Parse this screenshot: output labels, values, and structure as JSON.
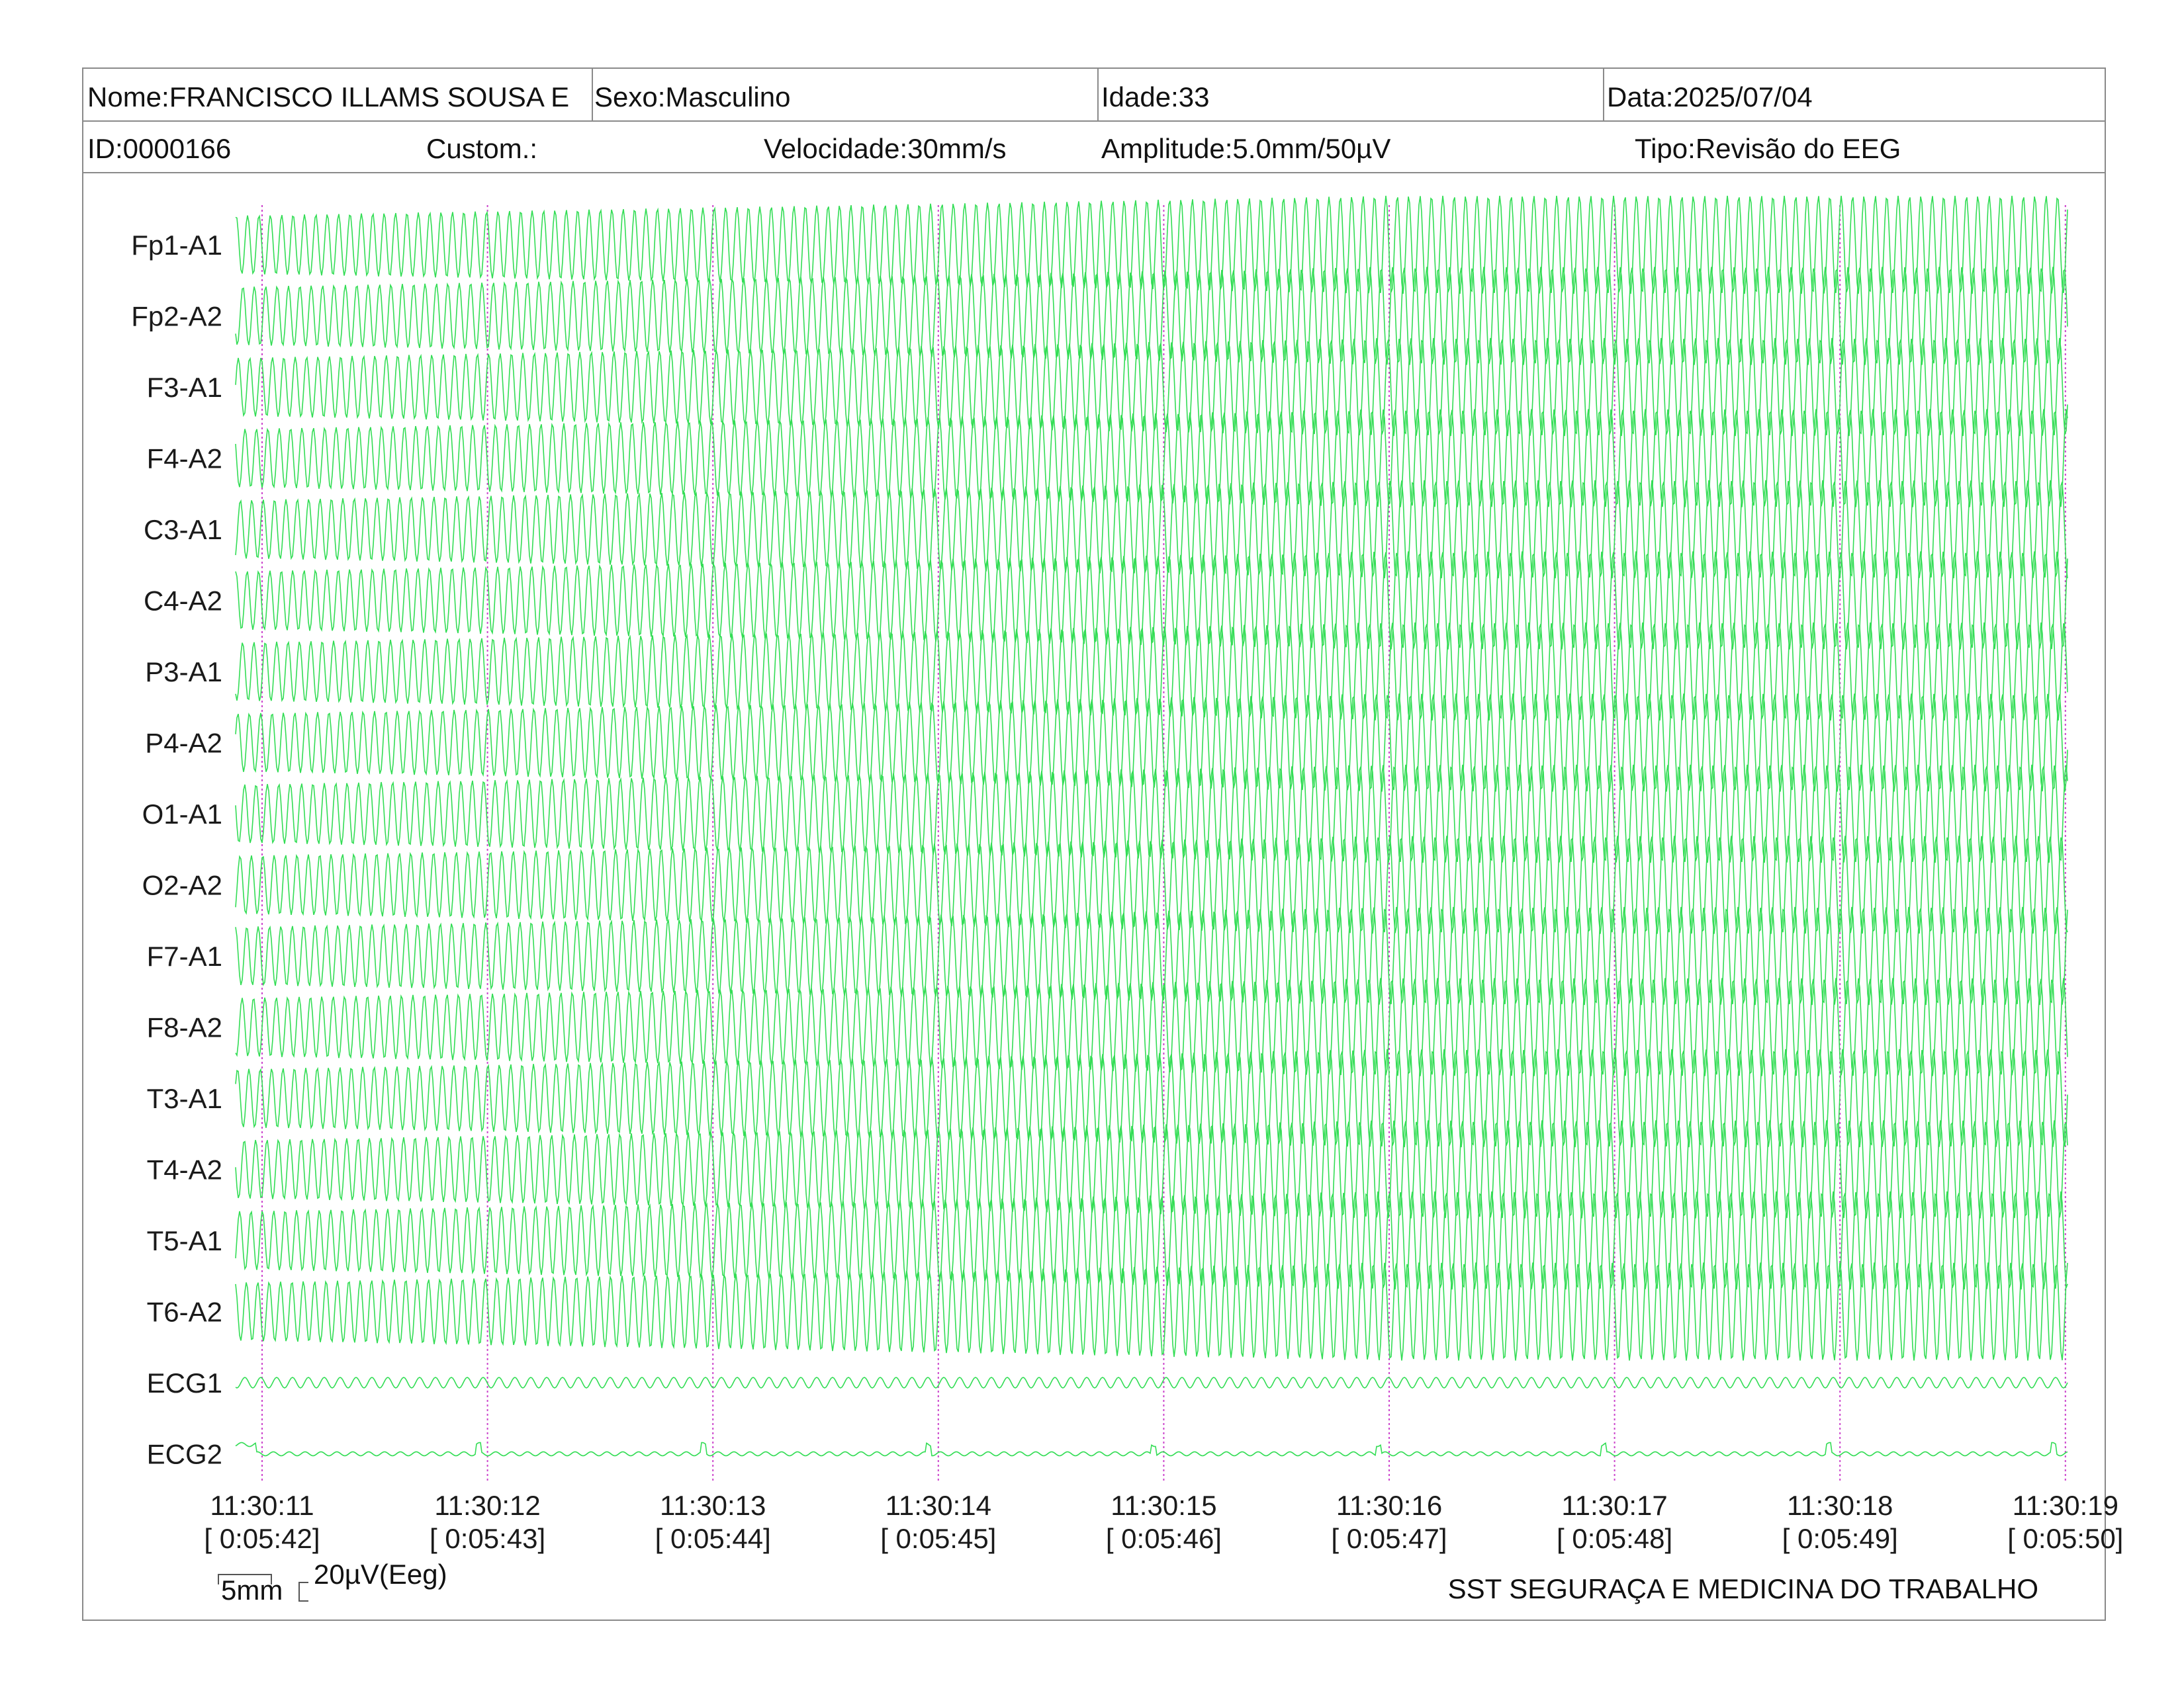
{
  "header": {
    "nome": "Nome:FRANCISCO ILLAMS SOUSA E",
    "sexo": "Sexo:Masculino",
    "idade": "Idade:33",
    "data": "Data:2025/07/04",
    "id": "ID:0000166",
    "custom": "Custom.:",
    "velocidade": "Velocidade:30mm/s",
    "amplitude": "Amplitude:5.0mm/50µV",
    "tipo": "Tipo:Revisão do EEG"
  },
  "channels": [
    "Fp1-A1",
    "Fp2-A2",
    "F3-A1",
    "F4-A2",
    "C3-A1",
    "C4-A2",
    "P3-A1",
    "P4-A2",
    "O1-A1",
    "O2-A2",
    "F7-A1",
    "F8-A2",
    "T3-A1",
    "T4-A2",
    "T5-A1",
    "T6-A2",
    "ECG1",
    "ECG2"
  ],
  "time_marks": [
    {
      "time": "11:30:11",
      "elapsed": "[ 0:05:42]"
    },
    {
      "time": "11:30:12",
      "elapsed": "[ 0:05:43]"
    },
    {
      "time": "11:30:13",
      "elapsed": "[ 0:05:44]"
    },
    {
      "time": "11:30:14",
      "elapsed": "[ 0:05:45]"
    },
    {
      "time": "11:30:15",
      "elapsed": "[ 0:05:46]"
    },
    {
      "time": "11:30:16",
      "elapsed": "[ 0:05:47]"
    },
    {
      "time": "11:30:17",
      "elapsed": "[ 0:05:48]"
    },
    {
      "time": "11:30:18",
      "elapsed": "[ 0:05:49]"
    },
    {
      "time": "11:30:19",
      "elapsed": "[ 0:05:50]"
    }
  ],
  "scale": {
    "time_label": "5mm",
    "amp_label": "20µV(Eeg)"
  },
  "footer": {
    "company": "SST SEGURAÇA E MEDICINA DO TRABALHO"
  },
  "colors": {
    "trace": "#33dd55",
    "marker": "#cc44cc",
    "border": "#8a8a8a"
  }
}
